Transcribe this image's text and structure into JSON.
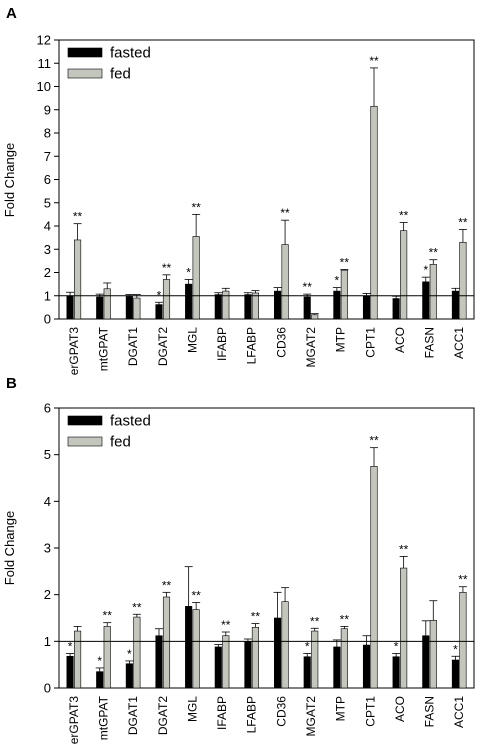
{
  "colors": {
    "fasted": "#000000",
    "fed": "#c3c6bc"
  },
  "chart_data": [
    {
      "type": "bar",
      "panel_label": "A",
      "ylabel": "Fold Change",
      "ylim": [
        0,
        12
      ],
      "yticks": [
        0,
        1,
        2,
        3,
        4,
        5,
        6,
        7,
        8,
        9,
        10,
        11,
        12
      ],
      "reference_line": 1,
      "legend_position": "top-left",
      "categories": [
        "erGPAT3",
        "mtGPAT",
        "DGAT1",
        "DGAT2",
        "MGL",
        "IFABP",
        "LFABP",
        "CD36",
        "MGAT2",
        "MTP",
        "CPT1",
        "ACO",
        "FASN",
        "ACC1"
      ],
      "series": [
        {
          "name": "fasted",
          "values": [
            1.0,
            0.95,
            0.97,
            0.62,
            1.5,
            1.05,
            1.05,
            1.2,
            0.95,
            1.2,
            1.0,
            0.88,
            1.6,
            1.2
          ],
          "errors": [
            0.15,
            0.12,
            0.08,
            0.1,
            0.2,
            0.08,
            0.08,
            0.15,
            0.12,
            0.15,
            0.1,
            0.1,
            0.2,
            0.12
          ],
          "significance": [
            "",
            "",
            "",
            "*",
            "*",
            "",
            "",
            "",
            "**",
            "*",
            "",
            "",
            "*",
            ""
          ]
        },
        {
          "name": "fed",
          "values": [
            3.4,
            1.3,
            0.9,
            1.7,
            3.55,
            1.2,
            1.12,
            3.2,
            0.18,
            2.1,
            9.15,
            3.8,
            2.35,
            3.3
          ],
          "errors": [
            0.7,
            0.25,
            0.15,
            0.2,
            0.95,
            0.12,
            0.1,
            1.05,
            0.05,
            0.03,
            1.65,
            0.35,
            0.2,
            0.55
          ],
          "significance": [
            "**",
            "",
            "",
            "**",
            "**",
            "",
            "",
            "**",
            "",
            "**",
            "**",
            "**",
            "**",
            "**"
          ]
        }
      ]
    },
    {
      "type": "bar",
      "panel_label": "B",
      "ylabel": "Fold Change",
      "ylim": [
        0,
        6
      ],
      "yticks": [
        0,
        1,
        2,
        3,
        4,
        5,
        6
      ],
      "reference_line": 1,
      "legend_position": "top-left",
      "categories": [
        "erGPAT3",
        "mtGPAT",
        "DGAT1",
        "DGAT2",
        "MGL",
        "IFABP",
        "LFABP",
        "CD36",
        "MGAT2",
        "MTP",
        "CPT1",
        "ACO",
        "FASN",
        "ACC1"
      ],
      "series": [
        {
          "name": "fasted",
          "values": [
            0.68,
            0.35,
            0.52,
            1.12,
            1.75,
            0.88,
            1.0,
            1.5,
            0.67,
            0.88,
            0.92,
            0.67,
            1.12,
            0.6
          ],
          "errors": [
            0.06,
            0.08,
            0.06,
            0.15,
            0.85,
            0.05,
            0.05,
            0.55,
            0.07,
            0.15,
            0.2,
            0.07,
            0.32,
            0.08
          ],
          "significance": [
            "*",
            "*",
            "*",
            "",
            "",
            "",
            "",
            "",
            "*",
            "",
            "",
            "*",
            "",
            "*"
          ]
        },
        {
          "name": "fed",
          "values": [
            1.22,
            1.32,
            1.52,
            1.95,
            1.68,
            1.12,
            1.3,
            1.85,
            1.22,
            1.27,
            4.75,
            2.57,
            1.45,
            2.05
          ],
          "errors": [
            0.1,
            0.08,
            0.06,
            0.1,
            0.15,
            0.08,
            0.08,
            0.3,
            0.06,
            0.05,
            0.4,
            0.25,
            0.42,
            0.12
          ],
          "significance": [
            "",
            "**",
            "**",
            "**",
            "**",
            "**",
            "**",
            "",
            "**",
            "**",
            "**",
            "**",
            "",
            "**"
          ]
        }
      ]
    }
  ]
}
